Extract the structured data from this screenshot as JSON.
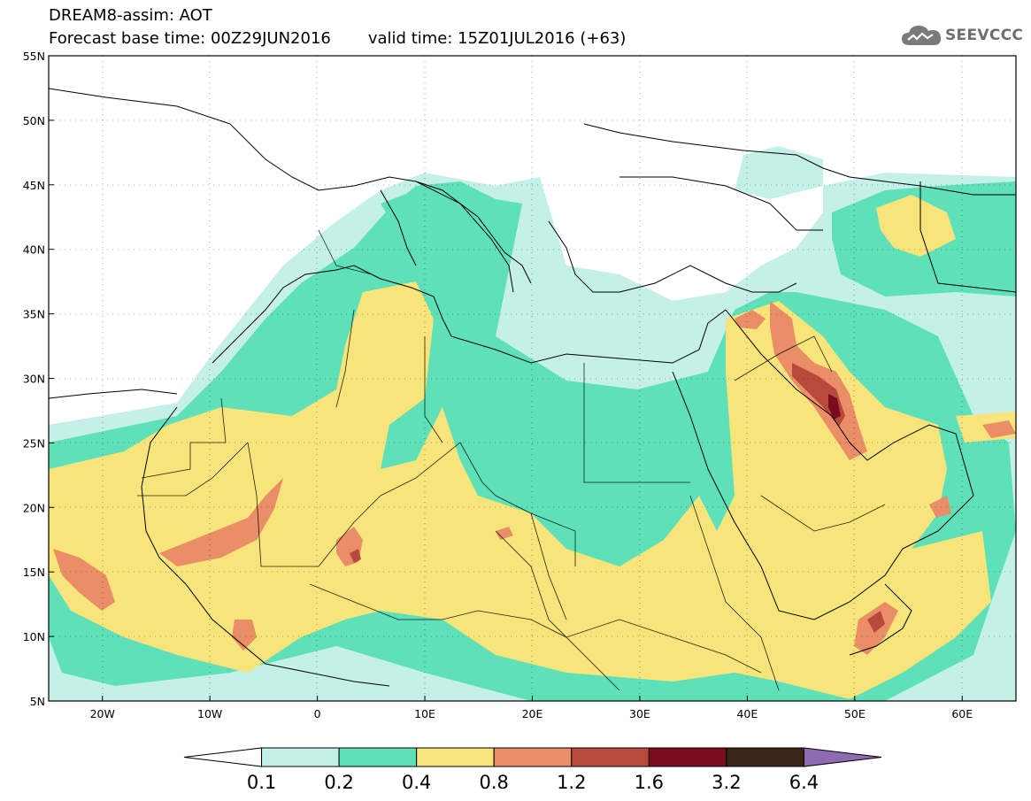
{
  "header": {
    "title_line1": "DREAM8-assim: AOT",
    "forecast_base": "Forecast base time: 00Z29JUN2016",
    "valid_time": "valid time: 15Z01JUL2016 (+63)"
  },
  "logo": {
    "icon": "cloud-icon",
    "text": "SEEVCCC"
  },
  "map": {
    "lon_labels": [
      "20W",
      "10W",
      "0",
      "10E",
      "20E",
      "30E",
      "40E",
      "50E",
      "60E"
    ],
    "lat_labels": [
      "55N",
      "50N",
      "45N",
      "40N",
      "35N",
      "30N",
      "25N",
      "20N",
      "15N",
      "10N",
      "5N"
    ],
    "lon_range": [
      -25,
      65
    ],
    "lat_range": [
      5,
      55
    ]
  },
  "legend": {
    "thresholds": [
      "0.1",
      "0.2",
      "0.4",
      "0.8",
      "1.2",
      "1.6",
      "3.2",
      "6.4"
    ],
    "colors": [
      "#ffffff",
      "#c4f0e8",
      "#5ee0b8",
      "#f7e47a",
      "#ea8e68",
      "#b84a3c",
      "#7a0c20",
      "#3a2616",
      "#8e6ab0"
    ]
  }
}
